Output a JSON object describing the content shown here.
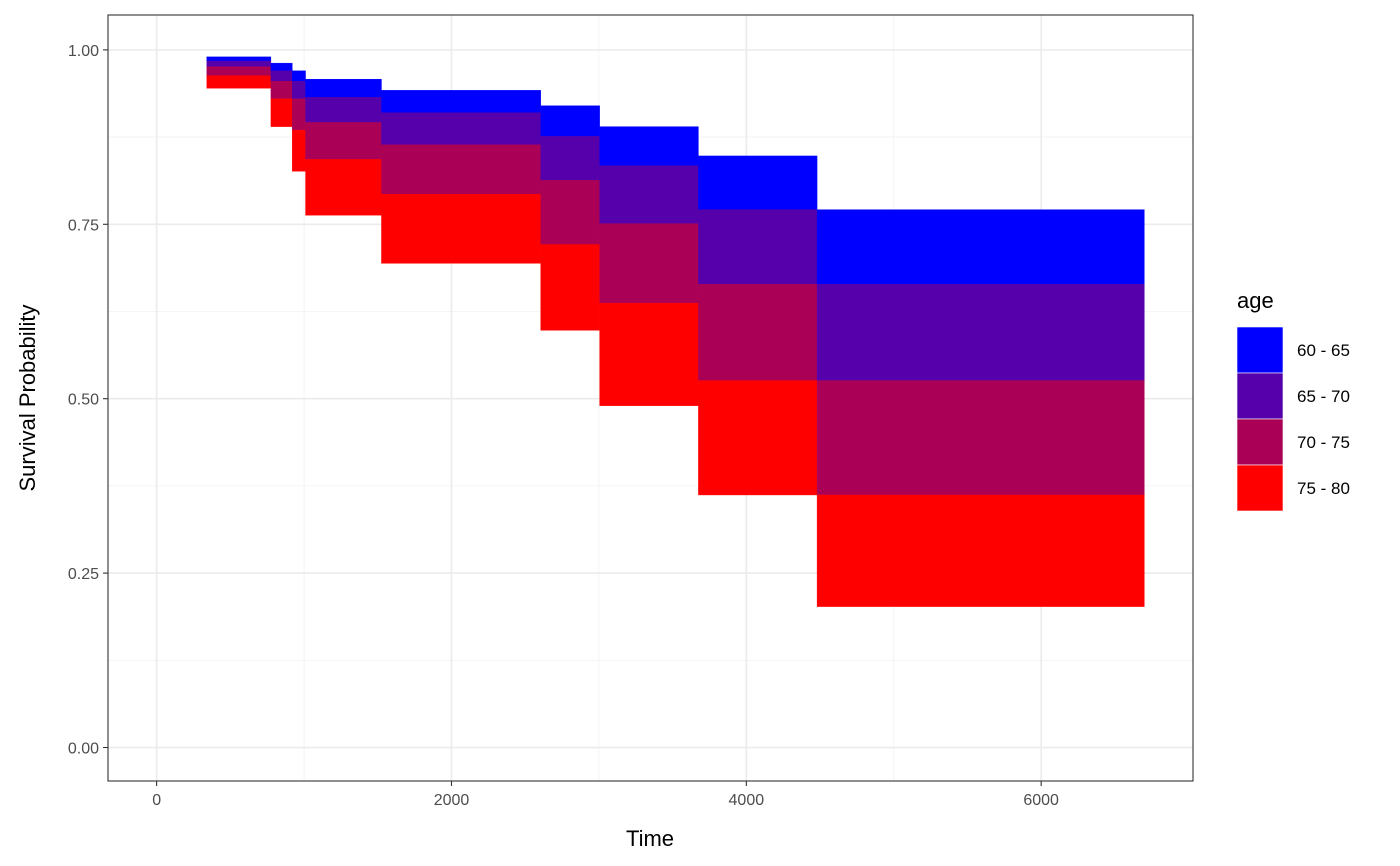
{
  "chart_data": {
    "type": "area",
    "xlabel": "Time",
    "ylabel": "Survival Probability",
    "xlim": [
      -330,
      7030
    ],
    "ylim": [
      -0.048,
      1.05
    ],
    "x_ticks": [
      0,
      2000,
      4000,
      6000
    ],
    "x_tick_labels": [
      "0",
      "2000",
      "4000",
      "6000"
    ],
    "y_ticks": [
      0,
      0.25,
      0.5,
      0.75,
      1.0
    ],
    "y_tick_labels": [
      "0.00",
      "0.25",
      "0.50",
      "0.75",
      "1.00"
    ],
    "grid": true,
    "legend": {
      "title": "age",
      "position": "right",
      "entries": [
        {
          "label": "60 - 65",
          "color": "#0000FF"
        },
        {
          "label": "65 - 70",
          "color": "#5500AA"
        },
        {
          "label": "70 - 75",
          "color": "#AA0055"
        },
        {
          "label": "75 - 80",
          "color": "#FF0000"
        }
      ]
    },
    "steps": [
      {
        "x0": 340,
        "x1": 775,
        "values": [
          0.99,
          0.984,
          0.976,
          0.963,
          0.945
        ]
      },
      {
        "x0": 775,
        "x1": 920,
        "values": [
          0.981,
          0.97,
          0.955,
          0.93,
          0.89
        ]
      },
      {
        "x0": 920,
        "x1": 1010,
        "values": [
          0.97,
          0.955,
          0.93,
          0.885,
          0.826
        ]
      },
      {
        "x0": 1010,
        "x1": 1525,
        "values": [
          0.958,
          0.932,
          0.896,
          0.843,
          0.763
        ]
      },
      {
        "x0": 1525,
        "x1": 2605,
        "values": [
          0.942,
          0.91,
          0.864,
          0.793,
          0.694
        ]
      },
      {
        "x0": 2605,
        "x1": 3005,
        "values": [
          0.92,
          0.876,
          0.813,
          0.721,
          0.598
        ]
      },
      {
        "x0": 3005,
        "x1": 3675,
        "values": [
          0.89,
          0.834,
          0.751,
          0.637,
          0.49
        ]
      },
      {
        "x0": 3675,
        "x1": 4480,
        "values": [
          0.848,
          0.771,
          0.664,
          0.526,
          0.362
        ]
      },
      {
        "x0": 4480,
        "x1": 6700,
        "values": [
          0.771,
          0.664,
          0.526,
          0.362,
          0.202
        ]
      }
    ]
  }
}
